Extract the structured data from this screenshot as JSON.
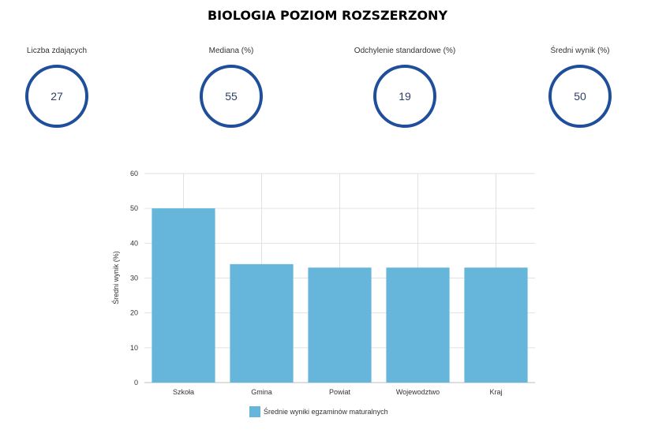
{
  "title": "BIOLOGIA POZIOM ROZSZERZONY",
  "stats": [
    {
      "label": "Liczba zdających",
      "value": "27"
    },
    {
      "label": "Mediana (%)",
      "value": "55"
    },
    {
      "label": "Odchylenie standardowe (%)",
      "value": "19"
    },
    {
      "label": "Średni wynik (%)",
      "value": "50"
    }
  ],
  "colors": {
    "circle": "#1f4e9a",
    "bar": "#66b6dc",
    "grid": "#e2e2e2"
  },
  "chart_data": {
    "type": "bar",
    "categories": [
      "Szkoła",
      "Gmina",
      "Powiat",
      "Wojewodztwo",
      "Kraj"
    ],
    "series": [
      {
        "name": "Średnie wyniki egzaminów maturalnych",
        "values": [
          50,
          34,
          33,
          33,
          33
        ]
      }
    ],
    "ylabel": "Średni wynik (%)",
    "ylim": [
      0,
      60
    ],
    "yticks": [
      0,
      10,
      20,
      30,
      40,
      50,
      60
    ],
    "grid": true,
    "legend": "bottom"
  }
}
